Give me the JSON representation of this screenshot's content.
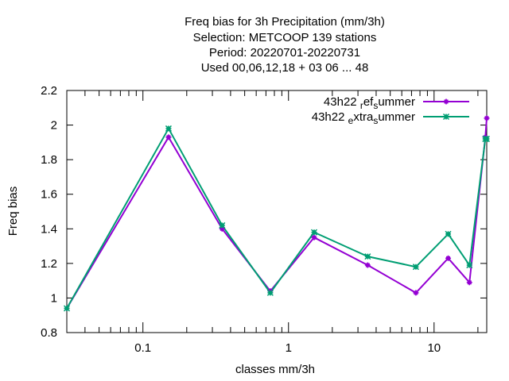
{
  "chart_data": {
    "type": "line",
    "title_lines": [
      "Freq bias  for 3h Precipitation (mm/3h)",
      "Selection: METCOOP    139 stations",
      "Period: 20220701-20220731",
      "Used  00,06,12,18  + 03 06 ... 48"
    ],
    "xlabel": "classes mm/3h",
    "ylabel": "Freq bias",
    "xscale": "log",
    "xlim": [
      0.03,
      23
    ],
    "ylim": [
      0.8,
      2.2
    ],
    "xticks": [
      {
        "value": 0.1,
        "label": "0.1"
      },
      {
        "value": 1,
        "label": "1"
      },
      {
        "value": 10,
        "label": "10"
      }
    ],
    "yticks": [
      {
        "value": 0.8,
        "label": "0.8"
      },
      {
        "value": 1.0,
        "label": "1"
      },
      {
        "value": 1.2,
        "label": "1.2"
      },
      {
        "value": 1.4,
        "label": "1.4"
      },
      {
        "value": 1.6,
        "label": "1.6"
      },
      {
        "value": 1.8,
        "label": "1.8"
      },
      {
        "value": 2.0,
        "label": "2"
      },
      {
        "value": 2.2,
        "label": "2.2"
      }
    ],
    "x": [
      0.03,
      0.15,
      0.35,
      0.75,
      1.5,
      3.5,
      7.5,
      12.5,
      17.5,
      22.5,
      23
    ],
    "series": [
      {
        "name": "43h22 ref summer",
        "legend": {
          "a": "43h22 ",
          "s1": "r",
          "b": "ef",
          "s2": "s",
          "c": "ummer"
        },
        "color": "#9400d3",
        "marker": "plus",
        "values": [
          0.94,
          1.93,
          1.4,
          1.04,
          1.35,
          1.19,
          1.03,
          1.23,
          1.09,
          1.93,
          2.04
        ]
      },
      {
        "name": "43h22 extra summer",
        "legend": {
          "a": "43h22 ",
          "s1": "e",
          "b": "xtra",
          "s2": "s",
          "c": "ummer"
        },
        "color": "#009e73",
        "marker": "cross",
        "values": [
          0.94,
          1.98,
          1.42,
          1.03,
          1.38,
          1.24,
          1.18,
          1.37,
          1.19,
          1.92,
          1.92
        ]
      }
    ],
    "legend_position": "top-right",
    "grid": false
  }
}
